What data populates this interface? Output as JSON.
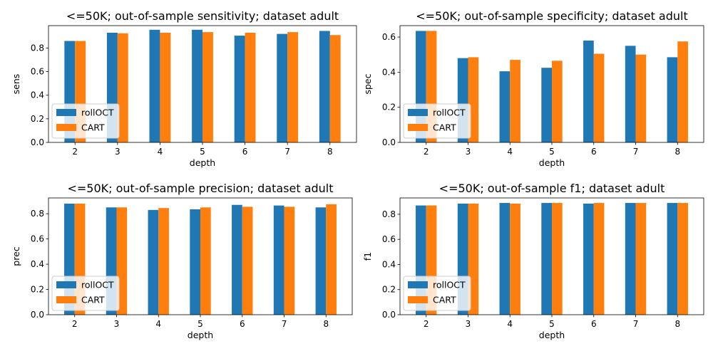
{
  "colors": {
    "rollOCT": "#1f77b4",
    "CART": "#ff7f0e"
  },
  "chart_data": [
    {
      "type": "bar",
      "title": "<=50K; out-of-sample sensitivity; dataset adult",
      "xlabel": "depth",
      "ylabel": "sens",
      "categories": [
        "2",
        "3",
        "4",
        "5",
        "6",
        "7",
        "8"
      ],
      "ylim": [
        0,
        0.99
      ],
      "yticks": [
        "0.0",
        "0.2",
        "0.4",
        "0.6",
        "0.8"
      ],
      "legend": "lower-left",
      "series": [
        {
          "name": "rollOCT",
          "values": [
            0.86,
            0.93,
            0.955,
            0.955,
            0.905,
            0.92,
            0.945
          ]
        },
        {
          "name": "CART",
          "values": [
            0.86,
            0.925,
            0.93,
            0.935,
            0.93,
            0.935,
            0.91
          ]
        }
      ]
    },
    {
      "type": "bar",
      "title": "<=50K; out-of-sample specificity; dataset adult",
      "xlabel": "depth",
      "ylabel": "spec",
      "categories": [
        "2",
        "3",
        "4",
        "5",
        "6",
        "7",
        "8"
      ],
      "ylim": [
        0,
        0.665
      ],
      "yticks": [
        "0.0",
        "0.2",
        "0.4",
        "0.6"
      ],
      "legend": "lower-left",
      "series": [
        {
          "name": "rollOCT",
          "values": [
            0.635,
            0.48,
            0.405,
            0.425,
            0.58,
            0.55,
            0.485
          ]
        },
        {
          "name": "CART",
          "values": [
            0.635,
            0.485,
            0.47,
            0.465,
            0.505,
            0.5,
            0.575
          ]
        }
      ]
    },
    {
      "type": "bar",
      "title": "<=50K; out-of-sample precision; dataset adult",
      "xlabel": "depth",
      "ylabel": "prec",
      "categories": [
        "2",
        "3",
        "4",
        "5",
        "6",
        "7",
        "8"
      ],
      "ylim": [
        0,
        0.925
      ],
      "yticks": [
        "0.0",
        "0.2",
        "0.4",
        "0.6",
        "0.8"
      ],
      "legend": "lower-left",
      "series": [
        {
          "name": "rollOCT",
          "values": [
            0.88,
            0.85,
            0.83,
            0.835,
            0.87,
            0.865,
            0.85
          ]
        },
        {
          "name": "CART",
          "values": [
            0.88,
            0.85,
            0.845,
            0.85,
            0.855,
            0.855,
            0.875
          ]
        }
      ]
    },
    {
      "type": "bar",
      "title": "<=50K; out-of-sample f1; dataset adult",
      "xlabel": "depth",
      "ylabel": "f1",
      "categories": [
        "2",
        "3",
        "4",
        "5",
        "6",
        "7",
        "8"
      ],
      "ylim": [
        0,
        0.93
      ],
      "yticks": [
        "0.0",
        "0.2",
        "0.4",
        "0.6",
        "0.8"
      ],
      "legend": "lower-left",
      "series": [
        {
          "name": "rollOCT",
          "values": [
            0.87,
            0.885,
            0.89,
            0.89,
            0.885,
            0.89,
            0.89
          ]
        },
        {
          "name": "CART",
          "values": [
            0.87,
            0.885,
            0.885,
            0.89,
            0.89,
            0.89,
            0.89
          ]
        }
      ]
    }
  ]
}
